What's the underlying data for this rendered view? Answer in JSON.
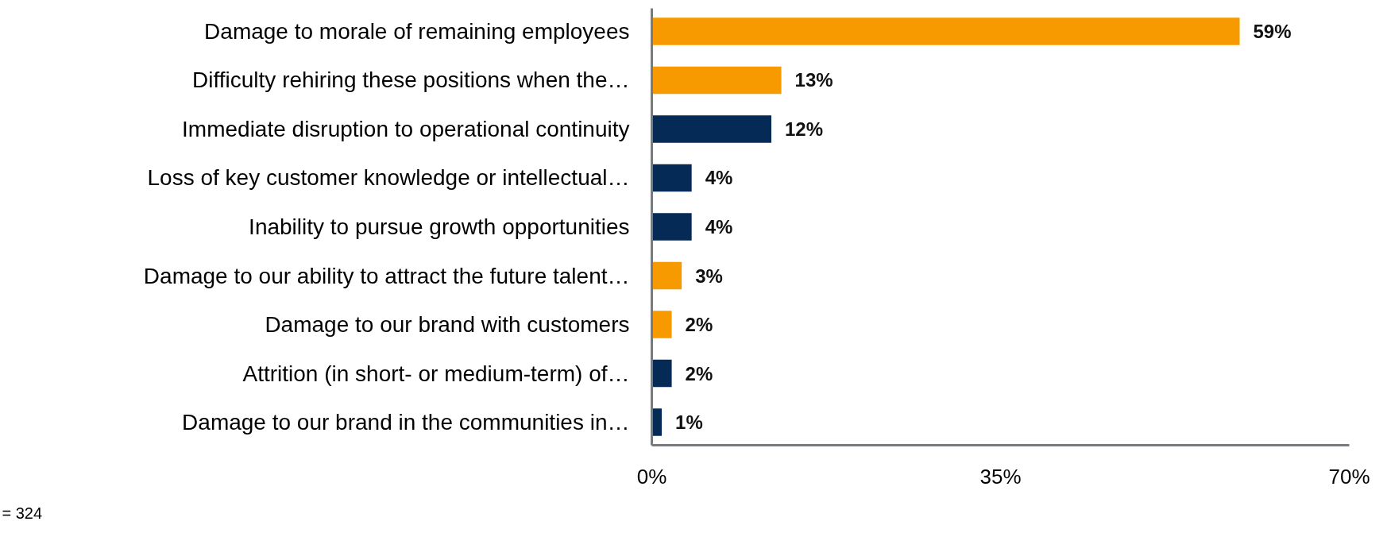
{
  "chart_data": {
    "type": "bar",
    "orientation": "horizontal",
    "categories": [
      "Damage to morale of remaining employees",
      "Difficulty rehiring these positions when the…",
      "Immediate disruption to operational continuity",
      "Loss of key customer knowledge or intellectual…",
      "Inability to pursue growth opportunities",
      "Damage to our ability to attract the future talent…",
      "Damage to our brand with customers",
      "Attrition (in short- or medium-term) of…",
      "Damage to our brand in the communities in…"
    ],
    "values": [
      59,
      13,
      12,
      4,
      4,
      3,
      2,
      2,
      1
    ],
    "colors": [
      "#f79a00",
      "#f79a00",
      "#062a56",
      "#062a56",
      "#062a56",
      "#f79a00",
      "#f79a00",
      "#062a56",
      "#062a56"
    ],
    "value_labels": [
      "59%",
      "13%",
      "12%",
      "4%",
      "4%",
      "3%",
      "2%",
      "2%",
      "1%"
    ],
    "xlim": [
      0,
      70
    ],
    "xticks": [
      {
        "value": 0,
        "label": "0%"
      },
      {
        "value": 35,
        "label": "35%"
      },
      {
        "value": 70,
        "label": "70%"
      }
    ],
    "grid": false,
    "annotations": [
      "= 324"
    ]
  }
}
